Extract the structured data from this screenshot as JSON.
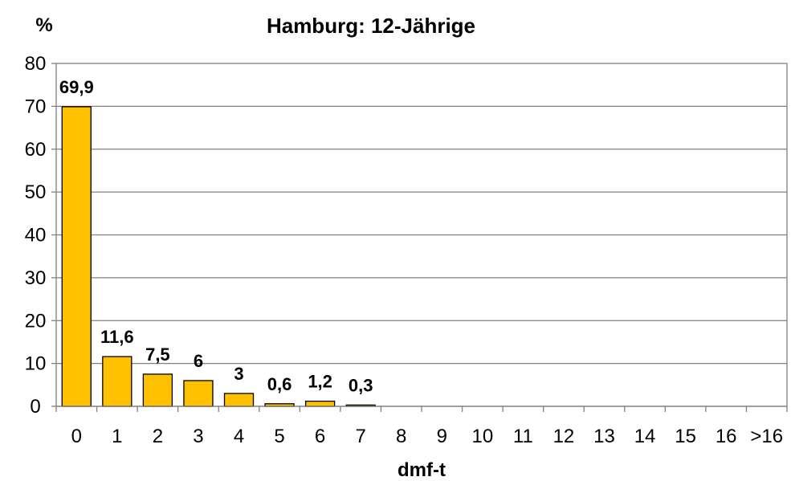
{
  "chart_data": {
    "type": "bar",
    "title": "Hamburg: 12-Jährige",
    "ylabel": "%",
    "xlabel": "dmf-t",
    "categories": [
      "0",
      "1",
      "2",
      "3",
      "4",
      "5",
      "6",
      "7",
      "8",
      "9",
      "10",
      "11",
      "12",
      "13",
      "14",
      "15",
      "16",
      ">16"
    ],
    "values": [
      69.9,
      11.6,
      7.5,
      6,
      3,
      0.6,
      1.2,
      0.3,
      0,
      0,
      0,
      0,
      0,
      0,
      0,
      0,
      0,
      0
    ],
    "data_labels": [
      "69,9",
      "11,6",
      "7,5",
      "6",
      "3",
      "0,6",
      "1,2",
      "0,3",
      "",
      "",
      "",
      "",
      "",
      "",
      "",
      "",
      "",
      ""
    ],
    "ylim": [
      0,
      80
    ],
    "yticks": [
      "0",
      "10",
      "20",
      "30",
      "40",
      "50",
      "60",
      "70",
      "80"
    ],
    "grid": true,
    "legend": "none",
    "colors": {
      "bar_fill": "#FFC000",
      "bar_stroke": "#000000",
      "grid": "#808080",
      "axis": "#808080"
    }
  }
}
